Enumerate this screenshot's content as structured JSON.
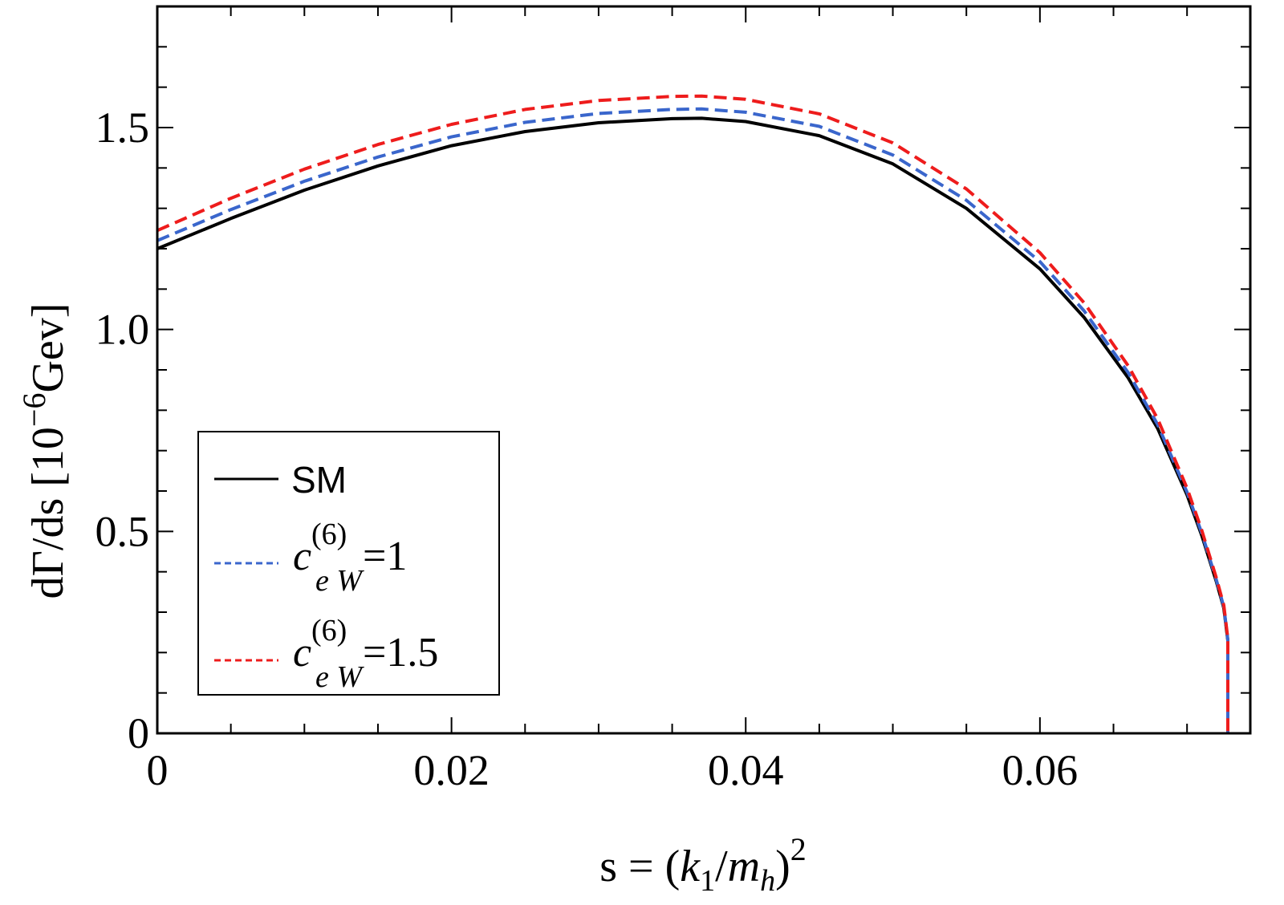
{
  "chart_data": {
    "type": "line",
    "title": "",
    "xlabel": {
      "prefix": "s = (",
      "k": "k",
      "k_sub": "1",
      "slash": "/",
      "m": "m",
      "m_sub": "h",
      "close": ")",
      "power": "2"
    },
    "ylabel": {
      "prefix": "dΓ/ds [10",
      "exp": "−6",
      "suffix": "Gev]"
    },
    "xlim": [
      0,
      0.0743
    ],
    "ylim": [
      0,
      1.8
    ],
    "x_ticks": [
      {
        "value": 0,
        "label": "0"
      },
      {
        "value": 0.02,
        "label": "0.02"
      },
      {
        "value": 0.04,
        "label": "0.04"
      },
      {
        "value": 0.06,
        "label": "0.06"
      }
    ],
    "y_ticks": [
      {
        "value": 0,
        "label": "0"
      },
      {
        "value": 0.5,
        "label": "0.5"
      },
      {
        "value": 1.0,
        "label": "1.0"
      },
      {
        "value": 1.5,
        "label": "1.5"
      }
    ],
    "x_minor_step": 0.005,
    "y_minor_step": 0.1,
    "legend_position": "lower-left",
    "series": [
      {
        "name": "SM",
        "label_main": "SM",
        "color": "#000000",
        "dash": "solid",
        "x": [
          0,
          0.005,
          0.01,
          0.015,
          0.02,
          0.025,
          0.03,
          0.035,
          0.037,
          0.04,
          0.045,
          0.05,
          0.055,
          0.06,
          0.063,
          0.066,
          0.068,
          0.07,
          0.071,
          0.072,
          0.0725,
          0.073,
          0.0735,
          0.0738,
          0.074
        ],
        "y": [
          1.2,
          1.275,
          1.345,
          1.405,
          1.455,
          1.49,
          1.512,
          1.522,
          1.523,
          1.515,
          1.48,
          1.41,
          1.3,
          1.15,
          1.03,
          0.88,
          0.755,
          0.59,
          0.49,
          0.375,
          0.31,
          0.23,
          0.13,
          0.06,
          0.0
        ]
      },
      {
        "name": "c_eW^(6)=1",
        "label_main": "c",
        "label_sup": "(6)",
        "label_sub": "e W",
        "label_eq": "=1",
        "color": "#3a66cc",
        "dash": "dashed",
        "x": [
          0,
          0.005,
          0.01,
          0.015,
          0.02,
          0.025,
          0.03,
          0.035,
          0.037,
          0.04,
          0.045,
          0.05,
          0.055,
          0.06,
          0.063,
          0.066,
          0.068,
          0.07,
          0.071,
          0.072,
          0.0725,
          0.073,
          0.0735,
          0.0738,
          0.074
        ],
        "y": [
          1.22,
          1.297,
          1.367,
          1.427,
          1.477,
          1.513,
          1.535,
          1.545,
          1.546,
          1.538,
          1.503,
          1.432,
          1.32,
          1.168,
          1.046,
          0.893,
          0.765,
          0.597,
          0.496,
          0.379,
          0.313,
          0.232,
          0.131,
          0.06,
          0.0
        ]
      },
      {
        "name": "c_eW^(6)=1.5",
        "label_main": "c",
        "label_sup": "(6)",
        "label_sub": "e W",
        "label_eq": "=1.5",
        "color": "#ee1c1c",
        "dash": "dashed",
        "x": [
          0,
          0.005,
          0.01,
          0.015,
          0.02,
          0.025,
          0.03,
          0.035,
          0.037,
          0.04,
          0.045,
          0.05,
          0.055,
          0.06,
          0.063,
          0.066,
          0.068,
          0.07,
          0.071,
          0.072,
          0.0725,
          0.073,
          0.0735,
          0.0738,
          0.074
        ],
        "y": [
          1.245,
          1.325,
          1.397,
          1.458,
          1.508,
          1.545,
          1.567,
          1.577,
          1.578,
          1.57,
          1.534,
          1.462,
          1.348,
          1.19,
          1.066,
          0.91,
          0.779,
          0.607,
          0.503,
          0.384,
          0.317,
          0.235,
          0.133,
          0.061,
          0.0
        ]
      }
    ]
  }
}
